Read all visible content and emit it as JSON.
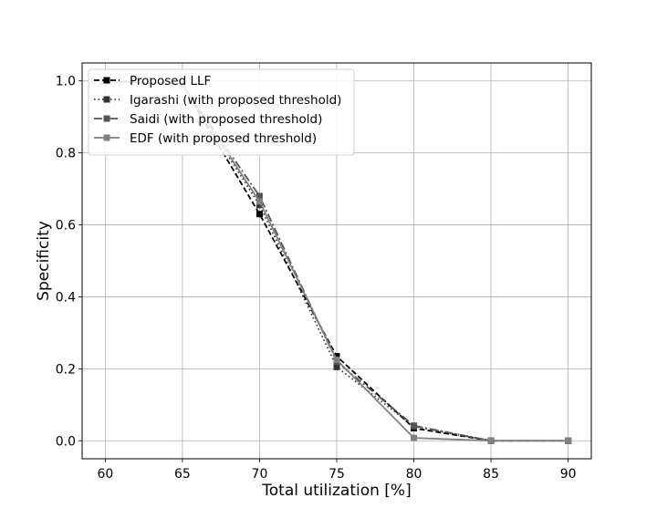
{
  "chart_data": {
    "type": "line",
    "title": "",
    "xlabel": "Total utilization [%]",
    "ylabel": "Specificity",
    "xlim": [
      58.5,
      91.5
    ],
    "ylim": [
      -0.05,
      1.05
    ],
    "x_ticks": [
      60,
      65,
      70,
      75,
      80,
      85,
      90
    ],
    "y_ticks": [
      0.0,
      0.2,
      0.4,
      0.6,
      0.8,
      1.0
    ],
    "x_tick_labels": [
      "60",
      "65",
      "70",
      "75",
      "80",
      "85",
      "90"
    ],
    "y_tick_labels": [
      "0.0",
      "0.2",
      "0.4",
      "0.6",
      "0.8",
      "1.0"
    ],
    "grid": true,
    "legend_position": "top-left",
    "x": [
      60,
      65,
      70,
      75,
      80,
      85,
      90
    ],
    "series": [
      {
        "name": "Proposed LLF",
        "values": [
          1.0,
          0.99,
          0.63,
          0.235,
          0.035,
          0.0,
          0.0
        ],
        "color": "#000000",
        "dash": "dashed",
        "marker": "square"
      },
      {
        "name": "Igarashi (with proposed threshold)",
        "values": [
          1.0,
          0.99,
          0.655,
          0.205,
          0.04,
          0.0,
          0.0
        ],
        "color": "#333333",
        "dash": "dotted",
        "marker": "square"
      },
      {
        "name": "Saidi (with proposed threshold)",
        "values": [
          1.0,
          0.99,
          0.68,
          0.22,
          0.042,
          0.0,
          0.0
        ],
        "color": "#555555",
        "dash": "dashdot",
        "marker": "square"
      },
      {
        "name": "EDF (with proposed threshold)",
        "values": [
          1.0,
          0.99,
          0.665,
          0.225,
          0.008,
          0.0,
          0.0
        ],
        "color": "#808080",
        "dash": "solid",
        "marker": "square"
      }
    ]
  }
}
